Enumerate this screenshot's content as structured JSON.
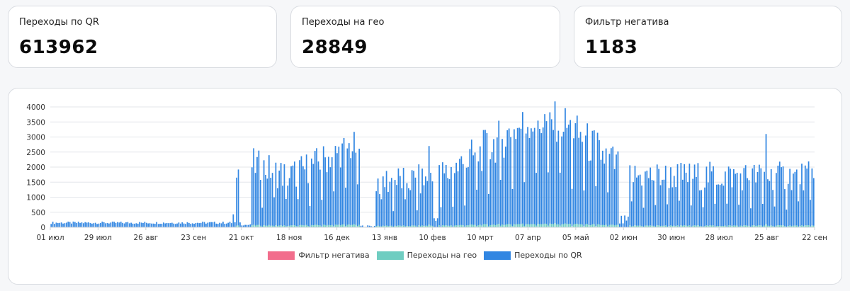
{
  "stats": [
    {
      "label": "Переходы по QR",
      "value": "613962"
    },
    {
      "label": "Переходы на гео",
      "value": "28849"
    },
    {
      "label": "Фильтр негатива",
      "value": "1183"
    }
  ],
  "chart_data": {
    "type": "bar",
    "stacked": true,
    "title": "",
    "xlabel": "",
    "ylabel": "",
    "ylim": [
      0,
      4000
    ],
    "yticks": [
      "0",
      "500",
      "1000",
      "1500",
      "2000",
      "2500",
      "3000",
      "3500",
      "4000"
    ],
    "x_tick_labels": [
      "01 июл",
      "29 июл",
      "26 авг",
      "23 сен",
      "21 окт",
      "18 ноя",
      "16 дек",
      "13 янв",
      "10 фев",
      "10 мрт",
      "07 апр",
      "05 май",
      "02 июн",
      "30 июн",
      "28 июл",
      "25 авг",
      "22 сен"
    ],
    "grid": true,
    "legend_position": "bottom",
    "days_between_ticks": 28,
    "series": [
      {
        "name": "Фильтр негатива",
        "color": "#f26d8c"
      },
      {
        "name": "Переходы на гео",
        "color": "#6fcdc1"
      },
      {
        "name": "Переходы по QR",
        "color": "#3186e2"
      }
    ],
    "segments": [
      {
        "from": 0,
        "to": 111,
        "base": 150,
        "amp": 40,
        "spike": [
          [
            107,
            430
          ],
          [
            109,
            1650
          ],
          [
            110,
            1920
          ]
        ]
      },
      {
        "from": 112,
        "to": 117,
        "base": 80,
        "amp": 20
      },
      {
        "from": 118,
        "to": 181,
        "base": 1650,
        "amp": 550,
        "ramp": [
          [
            118,
            2100
          ],
          [
            140,
            1700
          ],
          [
            175,
            2650
          ]
        ]
      },
      {
        "from": 182,
        "to": 190,
        "base": 40,
        "amp": 30
      },
      {
        "from": 191,
        "to": 224,
        "base": 1550,
        "amp": 550,
        "spike": [
          [
            222,
            2700
          ]
        ]
      },
      {
        "from": 225,
        "to": 227,
        "base": 300,
        "amp": 100
      },
      {
        "from": 228,
        "to": 333,
        "base": 2200,
        "amp": 700,
        "ramp": [
          [
            228,
            1600
          ],
          [
            280,
            3500
          ],
          [
            300,
            3500
          ],
          [
            333,
            2000
          ]
        ]
      },
      {
        "from": 334,
        "to": 339,
        "base": 200,
        "amp": 200
      },
      {
        "from": 340,
        "to": 448,
        "base": 1700,
        "amp": 500,
        "spike": [
          [
            420,
            3100
          ]
        ]
      }
    ],
    "geo_ratio": 0.03,
    "neg_ratio": 0.002
  }
}
